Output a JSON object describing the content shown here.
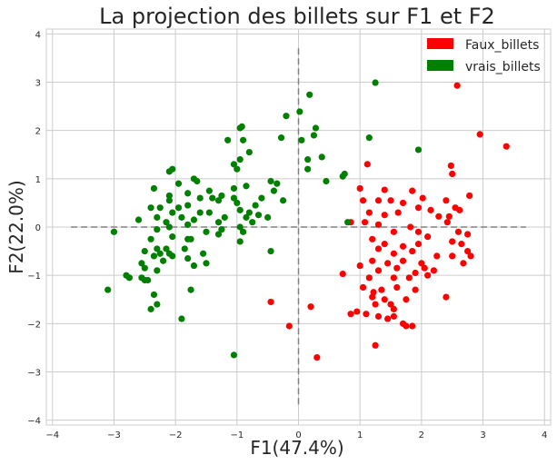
{
  "chart_data": {
    "type": "scatter",
    "title": "La projection des billets sur F1 et F2",
    "xlabel": "F1(47.4%)",
    "ylabel": "F2(22.0%)",
    "xlim": [
      -4.1,
      4.1
    ],
    "ylim": [
      -4.1,
      4.1
    ],
    "xticks": [
      -4,
      -3,
      -2,
      -1,
      0,
      1,
      2,
      3,
      4
    ],
    "yticks": [
      -4,
      -3,
      -2,
      -1,
      0,
      1,
      2,
      3,
      4
    ],
    "xtick_labels": [
      "−4",
      "−3",
      "−2",
      "−1",
      "0",
      "1",
      "2",
      "3",
      "4"
    ],
    "ytick_labels": [
      "−4",
      "−3",
      "−2",
      "−1",
      "0",
      "1",
      "2",
      "3",
      "4"
    ],
    "grid": true,
    "legend_position": "top-right",
    "reference_lines": {
      "horizontal": {
        "y": 0,
        "x_range": [
          -3.7,
          3.7
        ],
        "color": "#808080",
        "style": "dashed"
      },
      "vertical": {
        "x": 0,
        "y_range": [
          -3.7,
          3.7
        ],
        "color": "#808080",
        "style": "dashed"
      }
    },
    "series": [
      {
        "name": "Faux_billets",
        "color": "#ff0000",
        "points": [
          [
            2.58,
            2.93
          ],
          [
            2.95,
            1.92
          ],
          [
            3.38,
            1.67
          ],
          [
            1.12,
            1.3
          ],
          [
            2.48,
            1.27
          ],
          [
            2.5,
            1.1
          ],
          [
            1.4,
            0.77
          ],
          [
            1.0,
            0.8
          ],
          [
            1.85,
            0.75
          ],
          [
            2.78,
            0.65
          ],
          [
            1.05,
            0.55
          ],
          [
            1.3,
            0.55
          ],
          [
            1.5,
            0.55
          ],
          [
            1.7,
            0.5
          ],
          [
            2.02,
            0.6
          ],
          [
            2.4,
            0.55
          ],
          [
            2.55,
            0.4
          ],
          [
            2.62,
            0.35
          ],
          [
            1.95,
            0.4
          ],
          [
            2.15,
            0.35
          ],
          [
            1.15,
            0.3
          ],
          [
            1.4,
            0.25
          ],
          [
            1.62,
            0.3
          ],
          [
            2.28,
            0.22
          ],
          [
            2.45,
            0.22
          ],
          [
            1.08,
            0.1
          ],
          [
            0.85,
            0.1
          ],
          [
            1.3,
            0.05
          ],
          [
            1.82,
            0.0
          ],
          [
            2.42,
            0.1
          ],
          [
            1.55,
            -0.1
          ],
          [
            1.95,
            -0.1
          ],
          [
            2.6,
            -0.1
          ],
          [
            2.75,
            -0.15
          ],
          [
            1.2,
            -0.25
          ],
          [
            1.4,
            -0.35
          ],
          [
            2.1,
            -0.2
          ],
          [
            2.5,
            -0.3
          ],
          [
            1.7,
            -0.4
          ],
          [
            1.95,
            -0.35
          ],
          [
            2.65,
            -0.35
          ],
          [
            2.75,
            -0.5
          ],
          [
            1.3,
            -0.45
          ],
          [
            1.55,
            -0.55
          ],
          [
            1.85,
            -0.5
          ],
          [
            2.25,
            -0.6
          ],
          [
            2.5,
            -0.6
          ],
          [
            2.8,
            -0.6
          ],
          [
            1.2,
            -0.7
          ],
          [
            1.45,
            -0.75
          ],
          [
            1.7,
            -0.7
          ],
          [
            2.0,
            -0.75
          ],
          [
            2.68,
            -0.75
          ],
          [
            1.0,
            -0.8
          ],
          [
            1.6,
            -0.85
          ],
          [
            2.05,
            -0.85
          ],
          [
            1.3,
            -0.9
          ],
          [
            1.9,
            -0.95
          ],
          [
            2.2,
            -0.9
          ],
          [
            0.72,
            -0.97
          ],
          [
            1.15,
            -1.05
          ],
          [
            1.55,
            -1.05
          ],
          [
            1.8,
            -1.05
          ],
          [
            2.1,
            -1.0
          ],
          [
            1.05,
            -1.25
          ],
          [
            1.35,
            -1.3
          ],
          [
            1.6,
            -1.25
          ],
          [
            1.9,
            -1.3
          ],
          [
            1.2,
            -1.45
          ],
          [
            1.4,
            -1.5
          ],
          [
            1.75,
            -1.5
          ],
          [
            2.4,
            -1.45
          ],
          [
            1.25,
            -1.6
          ],
          [
            -0.45,
            -1.55
          ],
          [
            0.2,
            -1.65
          ],
          [
            1.55,
            -1.7
          ],
          [
            0.95,
            -1.75
          ],
          [
            1.1,
            -1.8
          ],
          [
            0.85,
            -1.8
          ],
          [
            1.3,
            -1.85
          ],
          [
            1.45,
            -1.9
          ],
          [
            1.55,
            -1.85
          ],
          [
            1.7,
            -2.0
          ],
          [
            -0.15,
            -2.05
          ],
          [
            1.75,
            -2.05
          ],
          [
            1.85,
            -2.05
          ],
          [
            1.25,
            -2.45
          ],
          [
            0.3,
            -2.7
          ],
          [
            1.5,
            -1.6
          ],
          [
            1.22,
            -1.35
          ]
        ]
      },
      {
        "name": "vrais_billets",
        "color": "#008000",
        "points": [
          [
            1.25,
            2.99
          ],
          [
            0.18,
            2.74
          ],
          [
            0.02,
            2.39
          ],
          [
            -0.2,
            2.3
          ],
          [
            -0.95,
            2.05
          ],
          [
            -0.92,
            2.08
          ],
          [
            0.28,
            2.05
          ],
          [
            0.25,
            1.9
          ],
          [
            0.05,
            1.8
          ],
          [
            -0.28,
            1.85
          ],
          [
            1.15,
            1.85
          ],
          [
            -1.15,
            1.8
          ],
          [
            -0.9,
            1.8
          ],
          [
            1.95,
            1.6
          ],
          [
            -0.8,
            1.55
          ],
          [
            -0.95,
            1.4
          ],
          [
            0.38,
            1.45
          ],
          [
            0.15,
            1.4
          ],
          [
            -1.05,
            1.3
          ],
          [
            -1.0,
            1.2
          ],
          [
            0.15,
            1.2
          ],
          [
            -2.1,
            1.15
          ],
          [
            -2.05,
            1.2
          ],
          [
            0.75,
            1.1
          ],
          [
            0.72,
            1.05
          ],
          [
            -1.7,
            1.0
          ],
          [
            -1.65,
            0.95
          ],
          [
            -1.95,
            0.9
          ],
          [
            -0.85,
            0.85
          ],
          [
            -0.45,
            0.95
          ],
          [
            0.45,
            0.95
          ],
          [
            -1.45,
            0.75
          ],
          [
            -0.35,
            0.9
          ],
          [
            -1.05,
            0.8
          ],
          [
            -2.35,
            0.8
          ],
          [
            -1.8,
            0.7
          ],
          [
            -1.25,
            0.65
          ],
          [
            -0.4,
            0.75
          ],
          [
            -2.1,
            0.65
          ],
          [
            -1.05,
            0.6
          ],
          [
            -1.4,
            0.6
          ],
          [
            -0.6,
            0.6
          ],
          [
            -2.1,
            0.55
          ],
          [
            -1.6,
            0.6
          ],
          [
            -1.0,
            0.5
          ],
          [
            -1.3,
            0.55
          ],
          [
            -0.25,
            0.55
          ],
          [
            -2.25,
            0.4
          ],
          [
            -1.95,
            0.4
          ],
          [
            -1.8,
            0.45
          ],
          [
            -0.95,
            0.35
          ],
          [
            -0.7,
            0.45
          ],
          [
            -2.4,
            0.4
          ],
          [
            -2.05,
            0.3
          ],
          [
            -1.6,
            0.3
          ],
          [
            -1.45,
            0.3
          ],
          [
            -0.8,
            0.3
          ],
          [
            -0.65,
            0.25
          ],
          [
            -2.3,
            0.2
          ],
          [
            -1.9,
            0.2
          ],
          [
            -1.2,
            0.2
          ],
          [
            -0.85,
            0.2
          ],
          [
            -0.5,
            0.2
          ],
          [
            -2.6,
            0.15
          ],
          [
            -2.15,
            0.1
          ],
          [
            -1.7,
            0.15
          ],
          [
            -1.3,
            0.1
          ],
          [
            -0.75,
            0.1
          ],
          [
            0.8,
            0.1
          ],
          [
            -2.1,
            0.0
          ],
          [
            -1.8,
            0.05
          ],
          [
            -1.25,
            -0.05
          ],
          [
            -0.95,
            0.0
          ],
          [
            -3.0,
            -0.1
          ],
          [
            -2.3,
            -0.05
          ],
          [
            -1.5,
            -0.1
          ],
          [
            -0.9,
            -0.1
          ],
          [
            -2.05,
            -0.2
          ],
          [
            -2.4,
            -0.25
          ],
          [
            -1.8,
            -0.25
          ],
          [
            -1.3,
            -0.15
          ],
          [
            -1.75,
            -0.25
          ],
          [
            -0.95,
            -0.3
          ],
          [
            -2.3,
            -0.45
          ],
          [
            -2.15,
            -0.45
          ],
          [
            -2.5,
            -0.5
          ],
          [
            -2.1,
            -0.55
          ],
          [
            -2.25,
            -0.55
          ],
          [
            -1.85,
            -0.45
          ],
          [
            -0.45,
            -0.5
          ],
          [
            -2.05,
            -0.6
          ],
          [
            -2.35,
            -0.6
          ],
          [
            -1.8,
            -0.65
          ],
          [
            -2.55,
            -0.75
          ],
          [
            -1.5,
            -0.75
          ],
          [
            -2.5,
            -0.85
          ],
          [
            -1.7,
            -0.8
          ],
          [
            -2.3,
            -0.9
          ],
          [
            -2.8,
            -1.0
          ],
          [
            -2.75,
            -1.05
          ],
          [
            -2.55,
            -1.05
          ],
          [
            -2.45,
            -1.1
          ],
          [
            -2.5,
            -1.1
          ],
          [
            -3.1,
            -1.3
          ],
          [
            -1.75,
            -1.3
          ],
          [
            -2.35,
            -1.4
          ],
          [
            -2.4,
            -1.7
          ],
          [
            -2.3,
            -1.6
          ],
          [
            -1.9,
            -1.9
          ],
          [
            -1.05,
            -2.65
          ],
          [
            -1.55,
            -0.55
          ],
          [
            -2.2,
            -0.7
          ]
        ]
      }
    ]
  }
}
